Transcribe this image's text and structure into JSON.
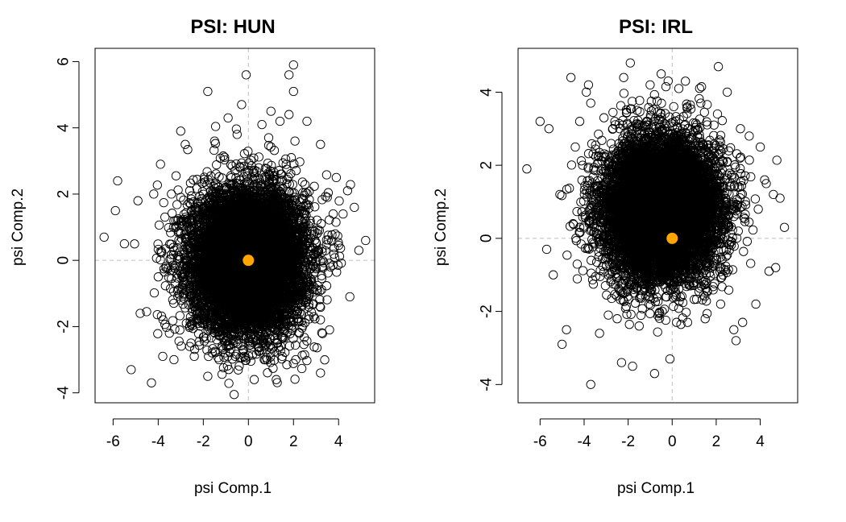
{
  "chart_data": [
    {
      "type": "scatter",
      "title": "PSI: HUN",
      "xlabel": "psi Comp.1",
      "ylabel": "psi Comp.2",
      "xlim": [
        -6.8,
        5.6
      ],
      "ylim": [
        -4.3,
        6.4
      ],
      "xticks": [
        -6,
        -4,
        -2,
        0,
        2,
        4
      ],
      "yticks": [
        -4,
        -2,
        0,
        2,
        4,
        6
      ],
      "grid": false,
      "reference_lines": {
        "x": 0,
        "y": 0,
        "color": "#bdbdbd",
        "style": "dashed"
      },
      "highlight_point": {
        "x": 0,
        "y": 0,
        "color": "#ffa500"
      },
      "marker": "open circle",
      "dense_cloud": {
        "n": 9000,
        "center_x": 0,
        "center_y": 0,
        "sd_x": 1.25,
        "sd_y": 1.05
      },
      "points": [
        [
          -6.4,
          0.7
        ],
        [
          -5.9,
          1.5
        ],
        [
          -5.8,
          2.4
        ],
        [
          -5.5,
          0.5
        ],
        [
          -5.2,
          -3.3
        ],
        [
          -4.9,
          1.8
        ],
        [
          -4.8,
          -1.6
        ],
        [
          -4.3,
          -3.7
        ],
        [
          -4.2,
          2.0
        ],
        [
          -3.9,
          2.9
        ],
        [
          -3.8,
          -2.9
        ],
        [
          -3.5,
          -2.2
        ],
        [
          -3.3,
          -3.0
        ],
        [
          -3.0,
          3.9
        ],
        [
          -2.8,
          3.5
        ],
        [
          -2.6,
          -2.6
        ],
        [
          -2.4,
          -2.9
        ],
        [
          -1.8,
          5.1
        ],
        [
          -1.8,
          -3.5
        ],
        [
          -1.5,
          3.6
        ],
        [
          -1.3,
          -3.0
        ],
        [
          -0.9,
          4.3
        ],
        [
          -0.5,
          3.8
        ],
        [
          -0.3,
          4.7
        ],
        [
          -0.2,
          -2.9
        ],
        [
          -0.1,
          5.6
        ],
        [
          0.6,
          4.1
        ],
        [
          0.7,
          -3.0
        ],
        [
          0.9,
          3.7
        ],
        [
          1.0,
          4.5
        ],
        [
          1.4,
          4.2
        ],
        [
          1.5,
          -2.9
        ],
        [
          1.8,
          4.4
        ],
        [
          1.8,
          5.6
        ],
        [
          1.9,
          3.1
        ],
        [
          2.0,
          5.9
        ],
        [
          2.0,
          5.1
        ],
        [
          2.1,
          -3.0
        ],
        [
          2.6,
          4.2
        ],
        [
          3.2,
          3.5
        ],
        [
          3.2,
          -3.4
        ],
        [
          3.6,
          -2.1
        ],
        [
          3.9,
          2.5
        ],
        [
          4.2,
          1.4
        ],
        [
          4.4,
          2.1
        ],
        [
          4.5,
          -1.1
        ],
        [
          4.7,
          1.6
        ],
        [
          4.9,
          0.3
        ],
        [
          5.2,
          0.6
        ],
        [
          -3.0,
          -1.2
        ],
        [
          3.5,
          1.9
        ],
        [
          -2.6,
          2.1
        ],
        [
          2.9,
          -1.7
        ],
        [
          -4.0,
          -0.5
        ]
      ]
    },
    {
      "type": "scatter",
      "title": "PSI: IRL",
      "xlabel": "psi Comp.1",
      "ylabel": "psi Comp.2",
      "xlim": [
        -7.0,
        5.7
      ],
      "ylim": [
        -4.5,
        5.2
      ],
      "xticks": [
        -6,
        -4,
        -2,
        0,
        2,
        4
      ],
      "yticks": [
        -4,
        -2,
        0,
        2,
        4
      ],
      "grid": false,
      "reference_lines": {
        "x": 0,
        "y": 0,
        "color": "#bdbdbd",
        "style": "dashed"
      },
      "highlight_point": {
        "x": 0,
        "y": 0,
        "color": "#ffa500"
      },
      "marker": "open circle",
      "dense_cloud": {
        "n": 9000,
        "center_x": -0.5,
        "center_y": 0.8,
        "sd_x": 1.3,
        "sd_y": 0.95
      },
      "points": [
        [
          -6.6,
          1.9
        ],
        [
          -6.0,
          3.2
        ],
        [
          -5.6,
          3.0
        ],
        [
          -5.0,
          -2.9
        ],
        [
          -4.8,
          -2.5
        ],
        [
          -4.6,
          4.4
        ],
        [
          -4.4,
          2.5
        ],
        [
          -4.2,
          3.2
        ],
        [
          -3.9,
          4.0
        ],
        [
          -3.8,
          4.2
        ],
        [
          -3.7,
          -4.0
        ],
        [
          -3.7,
          3.7
        ],
        [
          -3.3,
          -2.6
        ],
        [
          -3.1,
          3.3
        ],
        [
          -2.9,
          -2.1
        ],
        [
          -2.5,
          -2.2
        ],
        [
          -2.3,
          -3.4
        ],
        [
          -2.2,
          4.4
        ],
        [
          -1.9,
          4.8
        ],
        [
          -1.8,
          -3.5
        ],
        [
          -1.5,
          -2.4
        ],
        [
          -1.0,
          4.2
        ],
        [
          -0.8,
          -3.7
        ],
        [
          -0.5,
          4.5
        ],
        [
          -0.1,
          -3.3
        ],
        [
          0.2,
          -2.3
        ],
        [
          0.3,
          4.1
        ],
        [
          0.6,
          4.3
        ],
        [
          0.7,
          -2.3
        ],
        [
          1.3,
          3.7
        ],
        [
          1.5,
          -2.2
        ],
        [
          1.9,
          3.1
        ],
        [
          2.1,
          4.7
        ],
        [
          2.2,
          -1.8
        ],
        [
          2.5,
          4.0
        ],
        [
          2.9,
          -2.8
        ],
        [
          3.1,
          3.0
        ],
        [
          3.2,
          -2.3
        ],
        [
          3.5,
          2.8
        ],
        [
          3.8,
          -1.8
        ],
        [
          4.0,
          2.5
        ],
        [
          4.2,
          1.6
        ],
        [
          4.4,
          -0.9
        ],
        [
          4.6,
          1.2
        ],
        [
          4.9,
          1.1
        ],
        [
          5.1,
          0.3
        ],
        [
          4.7,
          -0.8
        ],
        [
          -5.4,
          -1.0
        ],
        [
          -5.7,
          -0.3
        ],
        [
          -5.1,
          1.2
        ],
        [
          -4.5,
          0.4
        ],
        [
          2.8,
          -2.5
        ]
      ]
    }
  ]
}
